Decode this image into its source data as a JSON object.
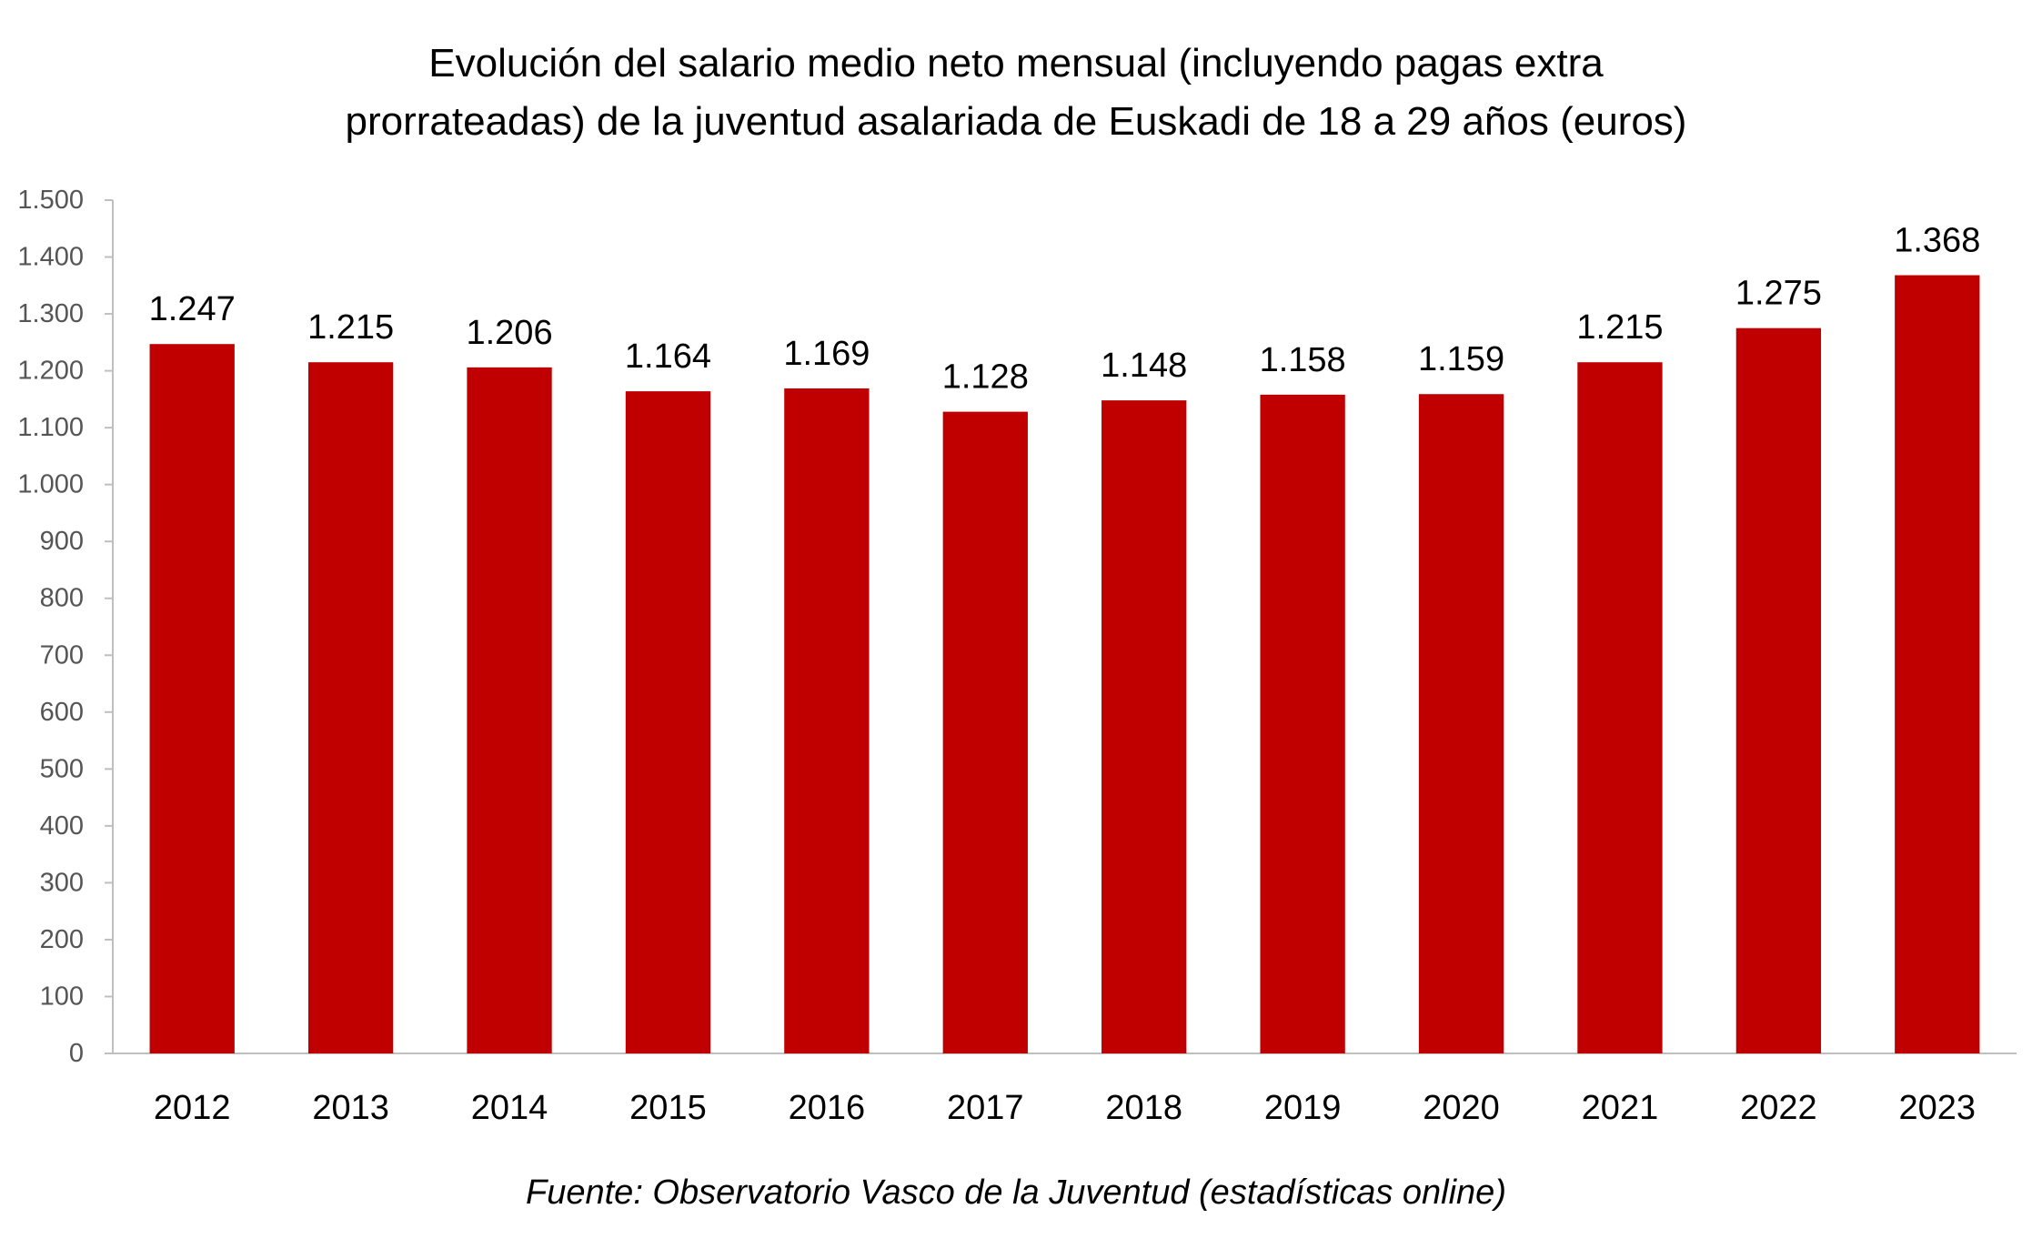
{
  "chart_data": {
    "type": "bar",
    "title_line1": "Evolución del salario medio neto mensual (incluyendo pagas extra",
    "title_line2": "prorrateadas) de la juventud asalariada de Euskadi de 18 a 29 años (euros)",
    "categories": [
      "2012",
      "2013",
      "2014",
      "2015",
      "2016",
      "2017",
      "2018",
      "2019",
      "2020",
      "2021",
      "2022",
      "2023"
    ],
    "values": [
      1247,
      1215,
      1206,
      1164,
      1169,
      1128,
      1148,
      1158,
      1159,
      1215,
      1275,
      1368
    ],
    "data_labels": [
      "1.247",
      "1.215",
      "1.206",
      "1.164",
      "1.169",
      "1.128",
      "1.148",
      "1.158",
      "1.159",
      "1.215",
      "1.275",
      "1.368"
    ],
    "ylim": [
      0,
      1500
    ],
    "yticks": [
      0,
      100,
      200,
      300,
      400,
      500,
      600,
      700,
      800,
      900,
      1000,
      1100,
      1200,
      1300,
      1400,
      1500
    ],
    "ytick_labels": [
      "0",
      "100",
      "200",
      "300",
      "400",
      "500",
      "600",
      "700",
      "800",
      "900",
      "1.000",
      "1.100",
      "1.200",
      "1.300",
      "1.400",
      "1.500"
    ],
    "xlabel": "",
    "ylabel": "",
    "grid": false,
    "legend": "none",
    "bar_color": "#C00000",
    "axis_color": "#BFBFBF",
    "source": "Fuente: Observatorio Vasco de la Juventud (estadísticas online)"
  }
}
